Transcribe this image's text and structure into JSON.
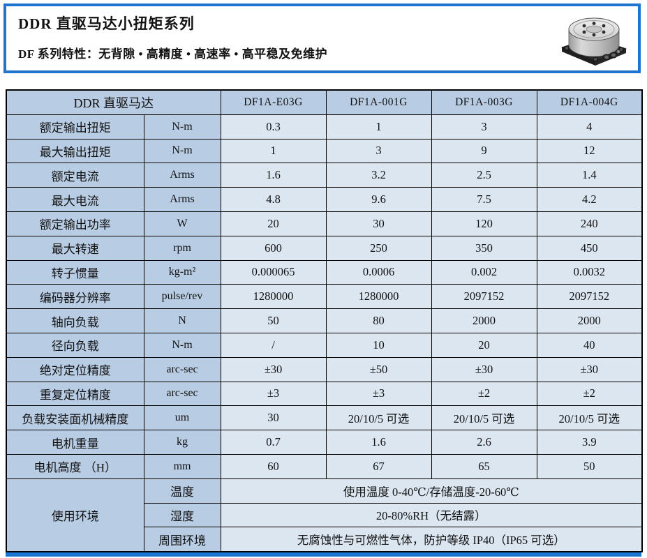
{
  "header": {
    "title": "DDR 直驱马达小扭矩系列",
    "subtitle": "DF 系列特性：无背隙 • 高精度 • 高速率 • 高平稳及免维护",
    "motor_image_name": "ddr-direct-drive-motor-render"
  },
  "colors": {
    "accent_blue_border": "#1b75d1",
    "header_cell_blue": "#b8cce4",
    "data_cell_blue": "#dce6f1",
    "table_border": "#000000"
  },
  "table": {
    "corner_label": "DDR 直驱马达",
    "models": [
      "DF1A-E03G",
      "DF1A-001G",
      "DF1A-003G",
      "DF1A-004G"
    ],
    "rows": [
      {
        "label": "额定输出扭矩",
        "unit": "N-m",
        "values": [
          "0.3",
          "1",
          "3",
          "4"
        ]
      },
      {
        "label": "最大输出扭矩",
        "unit": "N-m",
        "values": [
          "1",
          "3",
          "9",
          "12"
        ]
      },
      {
        "label": "额定电流",
        "unit": "Arms",
        "values": [
          "1.6",
          "3.2",
          "2.5",
          "1.4"
        ]
      },
      {
        "label": "最大电流",
        "unit": "Arms",
        "values": [
          "4.8",
          "9.6",
          "7.5",
          "4.2"
        ]
      },
      {
        "label": "额定输出功率",
        "unit": "W",
        "values": [
          "20",
          "30",
          "120",
          "240"
        ]
      },
      {
        "label": "最大转速",
        "unit": "rpm",
        "values": [
          "600",
          "250",
          "350",
          "450"
        ]
      },
      {
        "label": "转子惯量",
        "unit": "kg-m²",
        "values": [
          "0.000065",
          "0.0006",
          "0.002",
          "0.0032"
        ]
      },
      {
        "label": "编码器分辨率",
        "unit": "pulse/rev",
        "values": [
          "1280000",
          "1280000",
          "2097152",
          "2097152"
        ]
      },
      {
        "label": "轴向负载",
        "unit": "N",
        "values": [
          "50",
          "80",
          "2000",
          "2000"
        ]
      },
      {
        "label": "径向负载",
        "unit": "N-m",
        "values": [
          "/",
          "10",
          "20",
          "40"
        ]
      },
      {
        "label": "绝对定位精度",
        "unit": "arc-sec",
        "values": [
          "±30",
          "±50",
          "±30",
          "±30"
        ]
      },
      {
        "label": "重复定位精度",
        "unit": "arc-sec",
        "values": [
          "±3",
          "±3",
          "±2",
          "±2"
        ]
      },
      {
        "label": "负载安装面机械精度",
        "unit": "um",
        "values": [
          "30",
          "20/10/5 可选",
          "20/10/5 可选",
          "20/10/5 可选"
        ]
      },
      {
        "label": "电机重量",
        "unit": "kg",
        "values": [
          "0.7",
          "1.6",
          "2.6",
          "3.9"
        ]
      },
      {
        "label": "电机高度 （H）",
        "unit": "mm",
        "values": [
          "60",
          "67",
          "65",
          "50"
        ]
      }
    ],
    "environment": {
      "group_label": "使用环境",
      "rows": [
        {
          "label": "温度",
          "value": "使用温度 0-40℃/存储温度-20-60℃"
        },
        {
          "label": "湿度",
          "value": "20-80%RH（无结露）"
        },
        {
          "label": "周围环境",
          "value": "无腐蚀性与可燃性气体，防护等级 IP40（IP65 可选）"
        }
      ]
    }
  }
}
